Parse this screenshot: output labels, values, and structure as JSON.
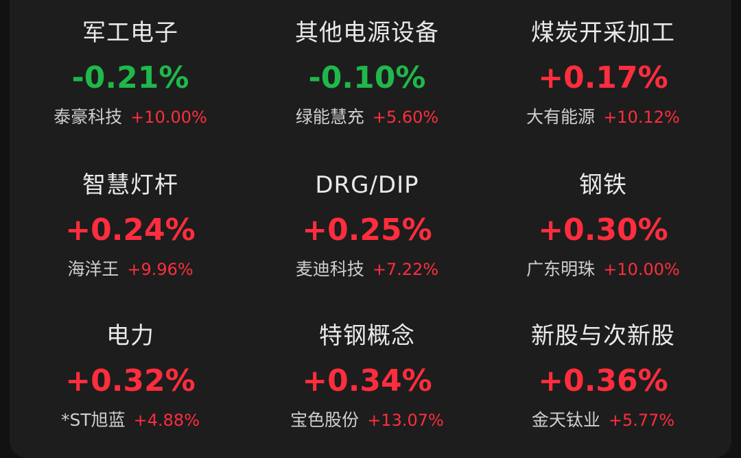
{
  "colors": {
    "up": "#ff2d3d",
    "down": "#1fb84a",
    "background": "#1d1d1d"
  },
  "sectors": [
    {
      "name": "军工电子",
      "change": "-0.21%",
      "direction": "down",
      "top_stock": "泰豪科技",
      "top_stock_change": "+10.00%"
    },
    {
      "name": "其他电源设备",
      "change": "-0.10%",
      "direction": "down",
      "top_stock": "绿能慧充",
      "top_stock_change": "+5.60%"
    },
    {
      "name": "煤炭开采加工",
      "change": "+0.17%",
      "direction": "up",
      "top_stock": "大有能源",
      "top_stock_change": "+10.12%"
    },
    {
      "name": "智慧灯杆",
      "change": "+0.24%",
      "direction": "up",
      "top_stock": "海洋王",
      "top_stock_change": "+9.96%"
    },
    {
      "name": "DRG/DIP",
      "change": "+0.25%",
      "direction": "up",
      "top_stock": "麦迪科技",
      "top_stock_change": "+7.22%"
    },
    {
      "name": "钢铁",
      "change": "+0.30%",
      "direction": "up",
      "top_stock": "广东明珠",
      "top_stock_change": "+10.00%"
    },
    {
      "name": "电力",
      "change": "+0.32%",
      "direction": "up",
      "top_stock": "*ST旭蓝",
      "top_stock_change": "+4.88%"
    },
    {
      "name": "特钢概念",
      "change": "+0.34%",
      "direction": "up",
      "top_stock": "宝色股份",
      "top_stock_change": "+13.07%"
    },
    {
      "name": "新股与次新股",
      "change": "+0.36%",
      "direction": "up",
      "top_stock": "金天钛业",
      "top_stock_change": "+5.77%"
    }
  ]
}
